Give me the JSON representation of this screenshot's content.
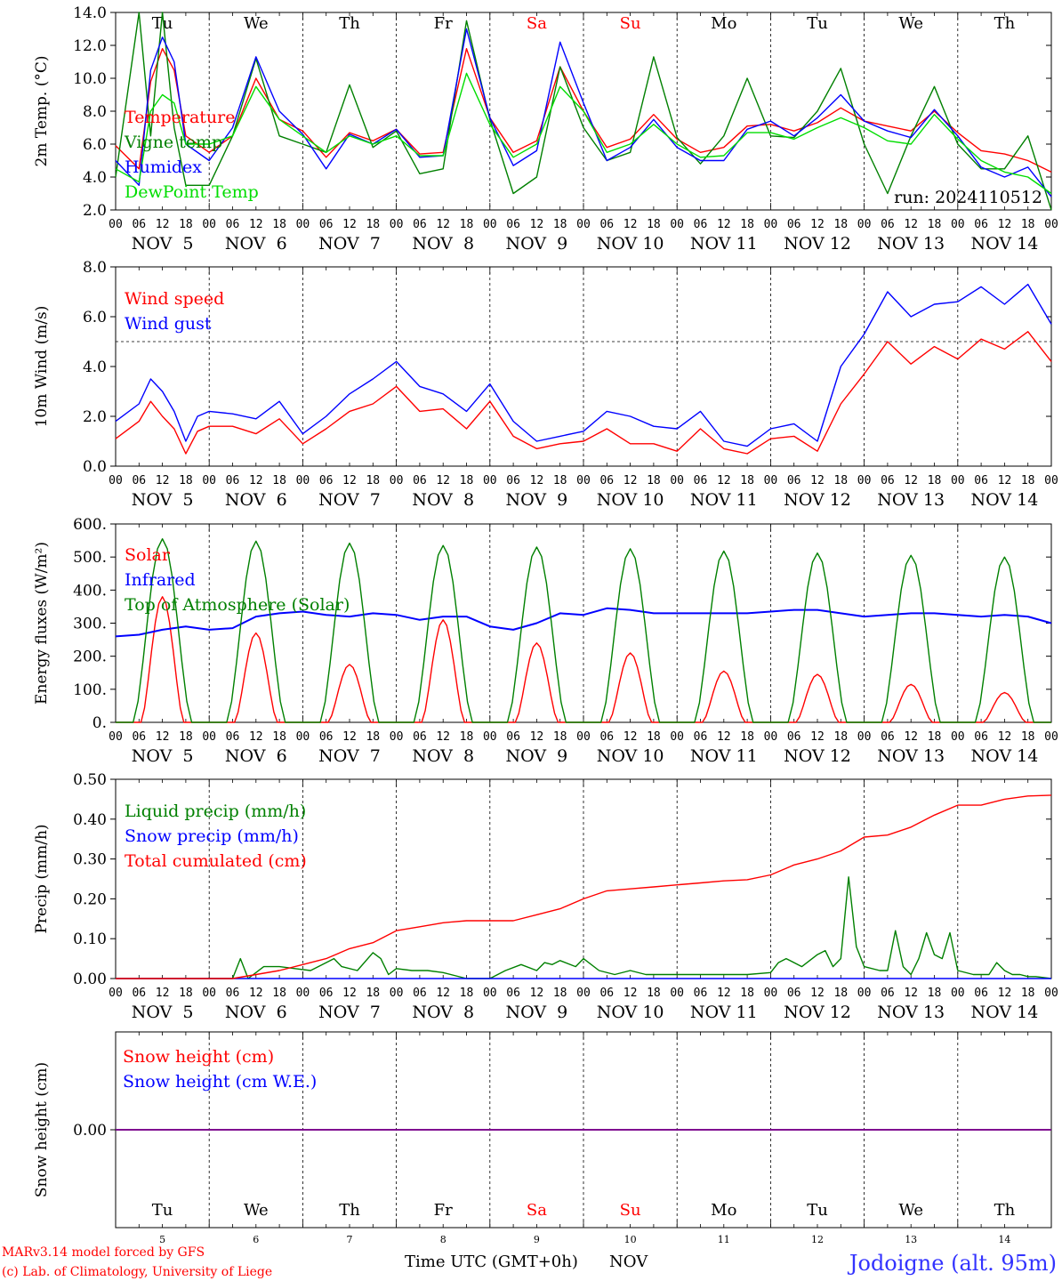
{
  "footer": {
    "credit_line1": "MARv3.14 model forced by GFS",
    "credit_line2": "(c) Lab. of Climatology, University of Liege",
    "time_label": "Time UTC (GMT+0h)",
    "month_label": "NOV",
    "station": "Jodoigne (alt. 95m)"
  },
  "axis": {
    "hour_ticks": [
      "00",
      "06",
      "12",
      "18"
    ],
    "final_tick": "00",
    "date_labels": [
      "NOV  5",
      "NOV  6",
      "NOV  7",
      "NOV  8",
      "NOV  9",
      "NOV 10",
      "NOV 11",
      "NOV 12",
      "NOV 13",
      "NOV 14"
    ],
    "day_names": [
      "Tu",
      "We",
      "Th",
      "Fr",
      "Sa",
      "Su",
      "Mo",
      "Tu",
      "We",
      "Th"
    ],
    "day_numbers": [
      "5",
      "6",
      "7",
      "8",
      "9",
      "10",
      "11",
      "12",
      "13",
      "14"
    ],
    "weekend_days": [
      4,
      5
    ]
  },
  "colors": {
    "red": "#ff0000",
    "green": "#008000",
    "blue": "#0000ff",
    "light_green": "#00dd00",
    "purple": "#800080",
    "station_blue": "#3333ff"
  },
  "chart_data": [
    {
      "type": "line",
      "ylabel": "2m Temp. (°C)",
      "ylim": [
        2,
        14
      ],
      "yticks": [
        "2.0",
        "4.0",
        "6.0",
        "8.0",
        "10.0",
        "12.0",
        "14.0"
      ],
      "xlim_hours": [
        0,
        240
      ],
      "annotation": "run: 2024110512",
      "legend_placement": "left",
      "series": [
        {
          "name": "Temperature",
          "color": "red",
          "x": [
            0,
            6,
            9,
            12,
            15,
            18,
            24,
            30,
            36,
            42,
            48,
            54,
            60,
            66,
            72,
            78,
            84,
            90,
            96,
            102,
            108,
            114,
            120,
            126,
            132,
            138,
            144,
            150,
            156,
            162,
            168,
            174,
            180,
            186,
            192,
            198,
            204,
            210,
            216,
            222,
            228,
            234,
            240
          ],
          "y": [
            5.9,
            4.5,
            9.8,
            11.8,
            10.5,
            6.5,
            5.5,
            6.5,
            10,
            7.5,
            6.8,
            5.2,
            6.7,
            6.2,
            6.9,
            5.4,
            5.5,
            11.8,
            7.6,
            5.5,
            6.2,
            10.7,
            8,
            5.8,
            6.3,
            7.8,
            6.3,
            5.5,
            5.8,
            7.1,
            7.2,
            6.8,
            7.3,
            8.2,
            7.4,
            7.1,
            6.8,
            8,
            6.7,
            5.6,
            5.4,
            5,
            4.3
          ]
        },
        {
          "name": "Vigne temp",
          "color": "green",
          "x": [
            0,
            6,
            9,
            12,
            15,
            18,
            24,
            30,
            36,
            42,
            48,
            54,
            60,
            66,
            72,
            78,
            84,
            90,
            96,
            102,
            108,
            114,
            120,
            126,
            132,
            138,
            144,
            150,
            156,
            162,
            168,
            174,
            180,
            186,
            192,
            198,
            204,
            210,
            216,
            222,
            228,
            234,
            240
          ],
          "y": [
            4,
            14,
            6.5,
            14,
            7,
            3.5,
            3.5,
            6.5,
            11.2,
            6.5,
            6,
            5.5,
            9.6,
            5.8,
            6.8,
            4.2,
            4.5,
            13.5,
            7.5,
            3,
            4,
            10.7,
            7,
            5,
            5.5,
            11.3,
            6.4,
            4.8,
            6.5,
            10,
            6.5,
            6.4,
            8,
            10.6,
            6,
            3,
            6.5,
            9.5,
            6,
            4.5,
            4.5,
            6.5,
            2
          ]
        },
        {
          "name": "Humidex",
          "color": "blue",
          "x": [
            0,
            6,
            9,
            12,
            15,
            18,
            24,
            30,
            36,
            42,
            48,
            54,
            60,
            66,
            72,
            78,
            84,
            90,
            96,
            102,
            108,
            114,
            120,
            126,
            132,
            138,
            144,
            150,
            156,
            162,
            168,
            174,
            180,
            186,
            192,
            198,
            204,
            210,
            216,
            222,
            228,
            234,
            240
          ],
          "y": [
            5,
            3.5,
            10.5,
            12.5,
            11,
            6,
            5,
            7,
            11.3,
            8,
            6.6,
            4.5,
            6.6,
            6,
            6.9,
            5.2,
            5.3,
            13,
            7.6,
            4.7,
            5.6,
            12.2,
            8.5,
            5,
            5.8,
            7.5,
            5.8,
            5,
            5,
            6.9,
            7.4,
            6.5,
            7.6,
            9,
            7.4,
            6.8,
            6.4,
            8.1,
            6.5,
            4.6,
            4,
            4.6,
            2.8
          ]
        },
        {
          "name": "DewPoint Temp",
          "color": "light_green",
          "x": [
            0,
            6,
            9,
            12,
            15,
            18,
            24,
            30,
            36,
            42,
            48,
            54,
            60,
            66,
            72,
            78,
            84,
            90,
            96,
            102,
            108,
            114,
            120,
            126,
            132,
            138,
            144,
            150,
            156,
            162,
            168,
            174,
            180,
            186,
            192,
            198,
            204,
            210,
            216,
            222,
            228,
            234,
            240
          ],
          "y": [
            4.5,
            3.7,
            8,
            9,
            8.5,
            6,
            6,
            6.5,
            9.5,
            7.5,
            6.5,
            5.5,
            6.5,
            6,
            6.5,
            5.3,
            5.3,
            10.3,
            7.2,
            5.2,
            6,
            9.5,
            8,
            5.5,
            6,
            7.2,
            6,
            5.2,
            5.3,
            6.7,
            6.7,
            6.3,
            7,
            7.6,
            7,
            6.2,
            6,
            7.8,
            6.3,
            5,
            4.3,
            4,
            3
          ]
        }
      ]
    },
    {
      "type": "line",
      "ylabel": "10m Wind (m/s)",
      "ylim": [
        0,
        8
      ],
      "yticks": [
        "0.0",
        "2.0",
        "4.0",
        "6.0",
        "8.0"
      ],
      "xlim_hours": [
        0,
        240
      ],
      "reference_line_y": 5,
      "legend_placement": "left",
      "series": [
        {
          "name": "Wind speed",
          "color": "red",
          "x": [
            0,
            6,
            9,
            12,
            15,
            18,
            21,
            24,
            30,
            36,
            42,
            48,
            54,
            60,
            66,
            72,
            78,
            84,
            90,
            96,
            102,
            108,
            114,
            120,
            126,
            132,
            138,
            144,
            150,
            156,
            162,
            168,
            174,
            180,
            186,
            192,
            198,
            204,
            210,
            216,
            222,
            228,
            234,
            240
          ],
          "y": [
            1.1,
            1.8,
            2.6,
            2,
            1.5,
            0.5,
            1.4,
            1.6,
            1.6,
            1.3,
            1.9,
            0.9,
            1.5,
            2.2,
            2.5,
            3.2,
            2.2,
            2.3,
            1.5,
            2.6,
            1.2,
            0.7,
            0.9,
            1,
            1.5,
            0.9,
            0.9,
            0.6,
            1.5,
            0.7,
            0.5,
            1.1,
            1.2,
            0.6,
            2.5,
            3.7,
            5,
            4.1,
            4.8,
            4.3,
            5.1,
            4.7,
            5.4,
            4.2
          ]
        },
        {
          "name": "Wind gust",
          "color": "blue",
          "x": [
            0,
            6,
            9,
            12,
            15,
            18,
            21,
            24,
            30,
            36,
            42,
            48,
            54,
            60,
            66,
            72,
            78,
            84,
            90,
            96,
            102,
            108,
            114,
            120,
            126,
            132,
            138,
            144,
            150,
            156,
            162,
            168,
            174,
            180,
            186,
            192,
            198,
            204,
            210,
            216,
            222,
            228,
            234,
            240
          ],
          "y": [
            1.8,
            2.5,
            3.5,
            3,
            2.2,
            1,
            2,
            2.2,
            2.1,
            1.9,
            2.6,
            1.3,
            2,
            2.9,
            3.5,
            4.2,
            3.2,
            2.9,
            2.2,
            3.3,
            1.8,
            1,
            1.2,
            1.4,
            2.2,
            2,
            1.6,
            1.5,
            2.2,
            1,
            0.8,
            1.5,
            1.7,
            1,
            4,
            5.3,
            7,
            6,
            6.5,
            6.6,
            7.2,
            6.5,
            7.3,
            5.7
          ]
        }
      ]
    },
    {
      "type": "line",
      "ylabel": "Energy fluxes (W/m²)",
      "ylim": [
        0,
        600
      ],
      "yticks": [
        "0.",
        "100.",
        "200.",
        "300.",
        "400.",
        "500.",
        "600."
      ],
      "xlim_hours": [
        0,
        240
      ],
      "legend_placement": "left",
      "series": [
        {
          "name": "Solar",
          "color": "red",
          "peaks": [
            380,
            270,
            175,
            310,
            240,
            210,
            155,
            145,
            115,
            90
          ]
        },
        {
          "name": "Infrared",
          "color": "blue",
          "x": [
            0,
            6,
            12,
            18,
            24,
            30,
            36,
            42,
            48,
            54,
            60,
            66,
            72,
            78,
            84,
            90,
            96,
            102,
            108,
            114,
            120,
            126,
            132,
            138,
            144,
            150,
            156,
            162,
            168,
            174,
            180,
            186,
            192,
            198,
            204,
            210,
            216,
            222,
            228,
            234,
            240
          ],
          "y": [
            260,
            265,
            280,
            290,
            280,
            285,
            320,
            330,
            335,
            325,
            320,
            330,
            325,
            310,
            320,
            320,
            290,
            280,
            300,
            330,
            325,
            345,
            340,
            330,
            330,
            330,
            330,
            330,
            335,
            340,
            340,
            330,
            320,
            325,
            330,
            330,
            325,
            320,
            325,
            320,
            300
          ]
        },
        {
          "name": "Top of Atmosphere (Solar)",
          "color": "green",
          "peaks": [
            555,
            548,
            542,
            535,
            530,
            525,
            518,
            512,
            505,
            500
          ]
        }
      ]
    },
    {
      "type": "line",
      "ylabel": "Precip (mm/h)",
      "ylim": [
        0,
        0.5
      ],
      "yticks": [
        "0.00",
        "0.10",
        "0.20",
        "0.30",
        "0.40",
        "0.50"
      ],
      "xlim_hours": [
        0,
        240
      ],
      "legend_placement": "left",
      "series": [
        {
          "name": "Liquid precip (mm/h)",
          "color": "green",
          "x": [
            0,
            30,
            32,
            34,
            38,
            42,
            46,
            50,
            54,
            56,
            58,
            62,
            66,
            68,
            70,
            72,
            76,
            80,
            84,
            90,
            96,
            100,
            104,
            108,
            110,
            112,
            114,
            118,
            120,
            124,
            128,
            132,
            136,
            144,
            150,
            156,
            162,
            168,
            170,
            172,
            176,
            180,
            182,
            184,
            186,
            188,
            190,
            192,
            196,
            198,
            200,
            202,
            204,
            206,
            208,
            210,
            212,
            214,
            216,
            220,
            224,
            226,
            228,
            230,
            232,
            234,
            236,
            240
          ],
          "y": [
            0,
            0,
            0.05,
            0,
            0.03,
            0.03,
            0.025,
            0.02,
            0.04,
            0.05,
            0.03,
            0.02,
            0.065,
            0.05,
            0.01,
            0.025,
            0.02,
            0.02,
            0.015,
            0,
            0,
            0.02,
            0.035,
            0.02,
            0.04,
            0.035,
            0.045,
            0.03,
            0.05,
            0.02,
            0.01,
            0.02,
            0.01,
            0.01,
            0.01,
            0.01,
            0.01,
            0.015,
            0.04,
            0.05,
            0.03,
            0.06,
            0.07,
            0.03,
            0.05,
            0.255,
            0.08,
            0.03,
            0.02,
            0.02,
            0.12,
            0.03,
            0.01,
            0.05,
            0.115,
            0.06,
            0.05,
            0.115,
            0.02,
            0.01,
            0.01,
            0.04,
            0.02,
            0.01,
            0.01,
            0.005,
            0.005,
            0
          ]
        },
        {
          "name": "Snow precip (mm/h)",
          "color": "blue",
          "x": [
            0,
            240
          ],
          "y": [
            0,
            0
          ]
        },
        {
          "name": "Total cumulated (cm)",
          "color": "red",
          "x": [
            0,
            30,
            36,
            42,
            48,
            54,
            60,
            66,
            72,
            78,
            84,
            90,
            96,
            102,
            108,
            114,
            120,
            126,
            132,
            138,
            144,
            150,
            156,
            162,
            168,
            174,
            180,
            186,
            192,
            198,
            204,
            210,
            216,
            222,
            228,
            234,
            240
          ],
          "y": [
            0,
            0,
            0.01,
            0.02,
            0.035,
            0.05,
            0.075,
            0.09,
            0.12,
            0.13,
            0.14,
            0.145,
            0.145,
            0.145,
            0.16,
            0.175,
            0.2,
            0.22,
            0.225,
            0.23,
            0.235,
            0.24,
            0.245,
            0.248,
            0.26,
            0.285,
            0.3,
            0.32,
            0.355,
            0.36,
            0.38,
            0.41,
            0.435,
            0.435,
            0.45,
            0.458,
            0.46
          ]
        }
      ]
    },
    {
      "type": "line",
      "ylabel": "Snow height (cm)",
      "ytick_value": 0,
      "ytick_label": "0.00",
      "xlim_hours": [
        0,
        240
      ],
      "legend_placement": "left",
      "series": [
        {
          "name": "Snow height (cm)",
          "color": "red",
          "x": [
            0,
            240
          ],
          "y": [
            0,
            0
          ]
        },
        {
          "name": "Snow height (cm W.E.)",
          "color": "blue",
          "x": [
            0,
            240
          ],
          "y": [
            0,
            0
          ]
        }
      ]
    }
  ]
}
